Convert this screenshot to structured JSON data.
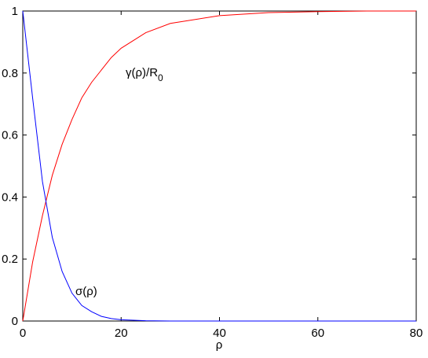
{
  "chart_data": {
    "type": "line",
    "xlabel": "ρ",
    "x": [
      0,
      2,
      4,
      6,
      8,
      10,
      12,
      14,
      16,
      18,
      20,
      25,
      30,
      40,
      50,
      60,
      70,
      80
    ],
    "series": [
      {
        "color": "#ff0000",
        "values": [
          0,
          0.19,
          0.34,
          0.47,
          0.57,
          0.65,
          0.72,
          0.77,
          0.81,
          0.85,
          0.88,
          0.93,
          0.96,
          0.985,
          0.995,
          0.998,
          1,
          1
        ]
      },
      {
        "color": "#0000ff",
        "values": [
          1,
          0.72,
          0.45,
          0.27,
          0.16,
          0.09,
          0.05,
          0.03,
          0.015,
          0.008,
          0.004,
          0.001,
          0,
          0,
          0,
          0,
          0,
          0
        ]
      }
    ],
    "annotations": [
      {
        "text": "γ(ρ)/R",
        "subscript": "0"
      },
      {
        "text": "σ(ρ)"
      }
    ],
    "xlim": [
      0,
      80
    ],
    "xticks": [
      0,
      20,
      40,
      60,
      80
    ],
    "ylim": [
      0,
      1
    ],
    "yticks": [
      0,
      0.2,
      0.4,
      0.6,
      0.8,
      1
    ]
  }
}
